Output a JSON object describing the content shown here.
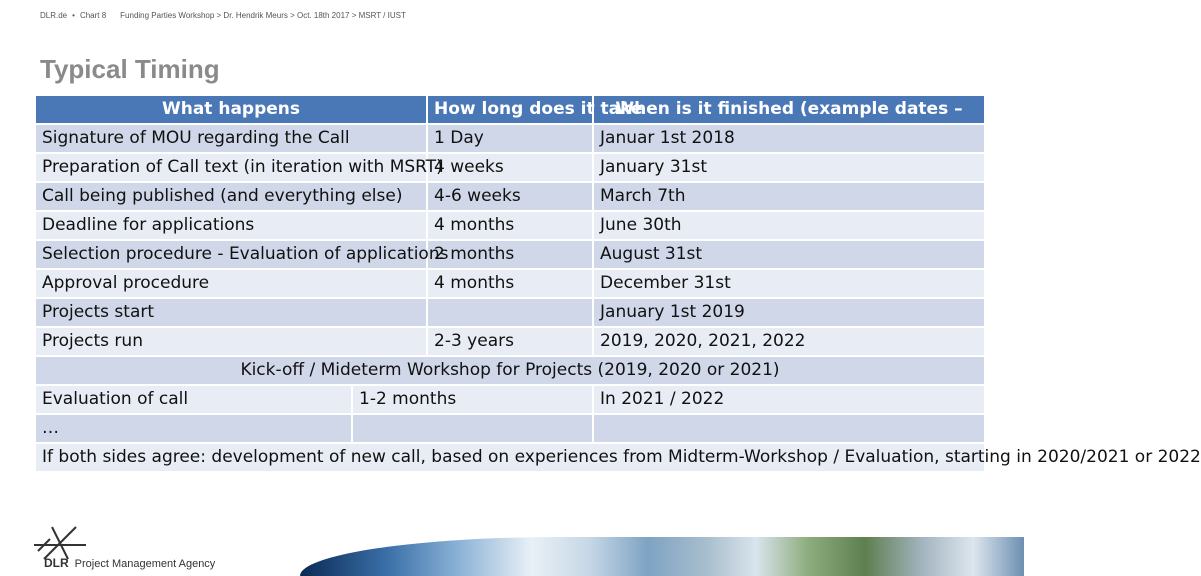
{
  "header": {
    "site": "DLR.de",
    "chart": "Chart 8",
    "path": "Funding Parties Workshop > Dr. Hendrik Meurs > Oct. 18th 2017 > MSRT / IUST"
  },
  "page_title": "Typical Timing",
  "table": {
    "headers": [
      "What happens",
      "How long does it take",
      "When is it finished (example dates –"
    ],
    "rows": [
      {
        "what": "Signature of MOU regarding the Call",
        "duration": "1 Day",
        "finished": "Januar 1st 2018"
      },
      {
        "what": "Preparation of Call text (in iteration with MSRT)",
        "duration": "4 weeks",
        "finished": "January 31st"
      },
      {
        "what": "Call being published (and everything else)",
        "duration": "4-6 weeks",
        "finished": "March 7th"
      },
      {
        "what": "Deadline for applications",
        "duration": "4 months",
        "finished": "June 30th"
      },
      {
        "what": "Selection procedure - Evaluation of applications",
        "duration": "2 months",
        "finished": "August 31st"
      },
      {
        "what": "Approval procedure",
        "duration": "4 months",
        "finished": "December 31st"
      },
      {
        "what": "Projects start",
        "duration": "",
        "finished": "January 1st 2019"
      },
      {
        "what": "Projects run",
        "duration": "2-3 years",
        "finished": "2019, 2020, 2021, 2022"
      }
    ],
    "kickoff_row": "Kick-off / Mideterm Workshop for Projects (2019, 2020 or 2021)",
    "evaluation_row": {
      "what": "Evaluation of call",
      "duration": "1-2 months",
      "finished": "In 2021 / 2022"
    },
    "ellipsis_row": "…",
    "final_row": "If both sides agree: development of new call, based on experiences from Midterm-Workshop / Evaluation, starting in 2020/2021 or 2022"
  },
  "footer": {
    "brand": "DLR",
    "agency": "Project Management Agency"
  },
  "colors": {
    "header_blue": "#4a78b7",
    "row_dark": "#cfd7e8",
    "row_light": "#e8ecf4",
    "title_gray": "#8a8a8a"
  }
}
